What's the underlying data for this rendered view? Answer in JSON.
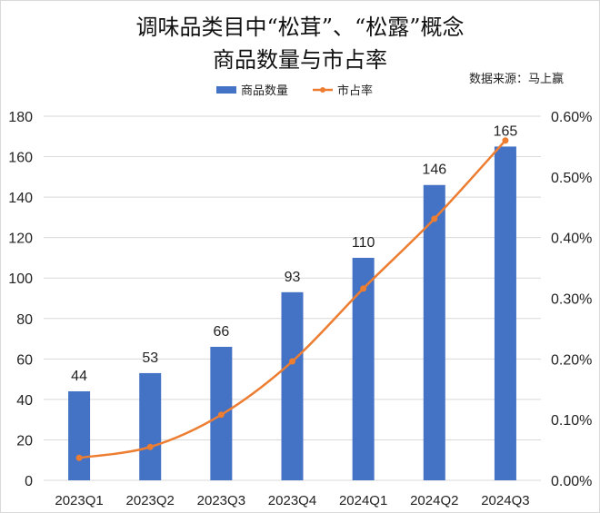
{
  "chart_data": {
    "type": "bar+line",
    "title": "调味品类目中“松茸”、“松露”概念",
    "subtitle": "商品数量与市占率",
    "source": "数据来源：马上赢",
    "categories": [
      "2023Q1",
      "2023Q2",
      "2023Q3",
      "2023Q4",
      "2024Q1",
      "2024Q2",
      "2024Q3"
    ],
    "series": [
      {
        "name": "商品数量",
        "type": "bar",
        "axis": "left",
        "color": "#4472C4",
        "values": [
          44,
          53,
          66,
          93,
          110,
          146,
          165
        ],
        "data_labels": [
          "44",
          "53",
          "66",
          "93",
          "110",
          "146",
          "165"
        ]
      },
      {
        "name": "市占率",
        "type": "line",
        "axis": "right",
        "color": "#ED7D31",
        "unit": "%",
        "values": [
          0.037,
          0.055,
          0.108,
          0.196,
          0.316,
          0.431,
          0.56
        ]
      }
    ],
    "left_axis": {
      "ylim": [
        0,
        180
      ],
      "ticks": [
        "0",
        "20",
        "40",
        "60",
        "80",
        "100",
        "120",
        "140",
        "160",
        "180"
      ]
    },
    "right_axis": {
      "ylim": [
        0,
        0.6
      ],
      "ticks": [
        "0.00%",
        "0.10%",
        "0.20%",
        "0.30%",
        "0.40%",
        "0.50%",
        "0.60%"
      ]
    },
    "grid": true,
    "legend": "top"
  }
}
